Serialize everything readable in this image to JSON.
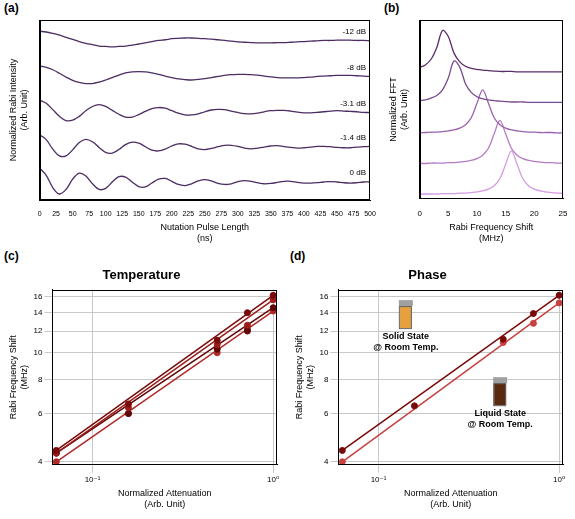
{
  "chart_data": [
    {
      "panel": "(a)",
      "type": "line",
      "xlabel": "Nutation Pulse Length (ns)",
      "ylabel": "Normalized Rabi Intensity (Arb. Unit)",
      "x": [
        0,
        10,
        20,
        30,
        40,
        50,
        60,
        70,
        80,
        90,
        100,
        110,
        120,
        130,
        140,
        150,
        160,
        170,
        180,
        190,
        200,
        210,
        220,
        230,
        240,
        250,
        260,
        270,
        280,
        290,
        300,
        310,
        320,
        330,
        340,
        350,
        360,
        370,
        380,
        390,
        400,
        410,
        420,
        430,
        440,
        450,
        460,
        470,
        480,
        490,
        500
      ],
      "xlim": [
        0,
        500
      ],
      "xticks": [
        0,
        25,
        50,
        75,
        100,
        125,
        150,
        175,
        200,
        225,
        250,
        275,
        300,
        325,
        350,
        375,
        400,
        425,
        450,
        475,
        500
      ],
      "ylim": [
        -0.5,
        4.6
      ],
      "tick_labels": "x",
      "grid": false,
      "series": [
        {
          "name": "-12 dB",
          "color": "#4b2d63",
          "values": [
            4.28,
            4.26,
            4.22,
            4.17,
            4.11,
            4.05,
            3.99,
            3.94,
            3.9,
            3.86,
            3.85,
            3.84,
            3.85,
            3.86,
            3.89,
            3.92,
            3.95,
            3.99,
            4.02,
            4.04,
            4.07,
            4.08,
            4.09,
            4.09,
            4.08,
            4.07,
            4.06,
            4.04,
            4.02,
            4.0,
            3.98,
            3.97,
            3.96,
            3.95,
            3.95,
            3.95,
            3.96,
            3.96,
            3.97,
            3.98,
            3.99,
            4.0,
            4.01,
            4.02,
            4.02,
            4.03,
            4.03,
            4.03,
            4.02,
            4.02,
            4.01
          ]
        },
        {
          "name": "-8 dB",
          "color": "#4b2d63",
          "values": [
            3.3,
            3.26,
            3.19,
            3.09,
            2.98,
            2.89,
            2.83,
            2.8,
            2.8,
            2.84,
            2.9,
            2.97,
            3.04,
            3.1,
            3.13,
            3.14,
            3.13,
            3.1,
            3.06,
            3.01,
            2.97,
            2.93,
            2.91,
            2.9,
            2.92,
            2.94,
            2.97,
            3.0,
            3.03,
            3.05,
            3.06,
            3.06,
            3.05,
            3.04,
            3.01,
            2.99,
            2.97,
            2.96,
            2.96,
            2.96,
            2.97,
            2.98,
            3.0,
            3.01,
            3.02,
            3.03,
            3.03,
            3.03,
            3.02,
            3.01,
            3.0
          ]
        },
        {
          "name": "-3.1 dB",
          "color": "#4b2d63",
          "values": [
            2.33,
            2.24,
            2.06,
            1.87,
            1.75,
            1.76,
            1.87,
            2.03,
            2.15,
            2.2,
            2.15,
            2.04,
            1.93,
            1.85,
            1.85,
            1.92,
            2.01,
            2.09,
            2.12,
            2.1,
            2.03,
            1.96,
            1.91,
            1.91,
            1.94,
            2.0,
            2.05,
            2.07,
            2.06,
            2.02,
            1.98,
            1.95,
            1.94,
            1.96,
            2.0,
            2.03,
            2.04,
            2.04,
            2.02,
            1.99,
            1.97,
            1.97,
            1.98,
            2.0,
            2.02,
            2.03,
            2.02,
            2.01,
            2.0,
            1.98,
            1.98
          ]
        },
        {
          "name": "-1.4 dB",
          "color": "#4b2d63",
          "values": [
            1.35,
            1.21,
            0.94,
            0.75,
            0.75,
            0.92,
            1.13,
            1.22,
            1.15,
            0.99,
            0.85,
            0.83,
            0.93,
            1.07,
            1.14,
            1.11,
            1.01,
            0.91,
            0.89,
            0.94,
            1.03,
            1.09,
            1.08,
            1.02,
            0.95,
            0.93,
            0.96,
            1.01,
            1.05,
            1.05,
            1.02,
            0.97,
            0.95,
            0.97,
            1.0,
            1.03,
            1.04,
            1.01,
            0.99,
            0.97,
            0.98,
            1.0,
            1.02,
            1.02,
            1.01,
            0.99,
            0.98,
            0.98,
            1.0,
            1.01,
            1.02
          ]
        },
        {
          "name": "0 dB",
          "color": "#4b2d63",
          "values": [
            0.4,
            0.2,
            -0.15,
            -0.33,
            -0.2,
            0.09,
            0.26,
            0.18,
            -0.04,
            -0.2,
            -0.17,
            0.01,
            0.16,
            0.15,
            0.01,
            -0.12,
            -0.13,
            -0.02,
            0.09,
            0.11,
            0.03,
            -0.06,
            -0.09,
            -0.04,
            0.04,
            0.08,
            0.04,
            -0.03,
            -0.06,
            -0.04,
            0.02,
            0.05,
            0.03,
            -0.01,
            -0.04,
            -0.03,
            0.0,
            0.03,
            0.03,
            0.0,
            -0.02,
            -0.02,
            -0.01,
            0.01,
            0.02,
            0.01,
            -0.01,
            -0.02,
            -0.01,
            0.01,
            0.01
          ]
        }
      ]
    },
    {
      "panel": "(b)",
      "type": "line",
      "xlabel": "Rabi Frequency Shift (MHz)",
      "ylabel": "Normalized FFT (Arb. Unit)",
      "x": [
        0,
        1,
        2,
        3,
        4,
        5,
        6,
        7,
        8,
        9,
        10,
        11,
        12,
        13,
        14,
        15,
        16,
        17,
        18,
        19,
        20,
        21,
        22,
        23,
        24,
        25
      ],
      "xlim": [
        0,
        25
      ],
      "xticks": [
        0,
        5,
        10,
        15,
        20,
        25
      ],
      "ylim": [
        -0.1,
        4.0
      ],
      "tick_labels": "x",
      "grid": false,
      "series": [
        {
          "color": "#5a2d6b",
          "values": [
            2.91,
            2.97,
            3.1,
            3.37,
            3.76,
            3.62,
            3.24,
            3.04,
            2.94,
            2.89,
            2.87,
            2.85,
            2.84,
            2.83,
            2.82,
            2.82,
            2.82,
            2.81,
            2.81,
            2.81,
            2.81,
            2.81,
            2.81,
            2.81,
            2.81,
            2.81
          ]
        },
        {
          "color": "#7a4a8e",
          "values": [
            2.15,
            2.17,
            2.21,
            2.27,
            2.4,
            2.67,
            3.06,
            2.92,
            2.54,
            2.34,
            2.24,
            2.19,
            2.17,
            2.15,
            2.14,
            2.13,
            2.12,
            2.12,
            2.12,
            2.11,
            2.11,
            2.11,
            2.11,
            2.11,
            2.11,
            2.11
          ]
        },
        {
          "color": "#9b62ad",
          "values": [
            1.42,
            1.42,
            1.43,
            1.43,
            1.44,
            1.46,
            1.48,
            1.52,
            1.6,
            1.76,
            2.09,
            2.4,
            2.09,
            1.76,
            1.6,
            1.52,
            1.48,
            1.46,
            1.44,
            1.43,
            1.43,
            1.42,
            1.42,
            1.42,
            1.41,
            1.41
          ]
        },
        {
          "color": "#b57cc4",
          "values": [
            0.71,
            0.71,
            0.72,
            0.72,
            0.72,
            0.73,
            0.73,
            0.74,
            0.76,
            0.78,
            0.82,
            0.9,
            1.06,
            1.39,
            1.7,
            1.39,
            1.06,
            0.9,
            0.82,
            0.78,
            0.76,
            0.74,
            0.73,
            0.73,
            0.72,
            0.72
          ]
        },
        {
          "color": "#d49be0",
          "values": [
            0.01,
            0.01,
            0.01,
            0.01,
            0.02,
            0.02,
            0.02,
            0.03,
            0.03,
            0.04,
            0.06,
            0.08,
            0.12,
            0.2,
            0.36,
            0.69,
            1.0,
            0.69,
            0.36,
            0.2,
            0.12,
            0.08,
            0.06,
            0.04,
            0.03,
            0.03
          ]
        }
      ]
    },
    {
      "panel": "(c)",
      "type": "scatter",
      "title": "Temperature",
      "xlabel": "Normalized Attenuation (Arb. Unit)",
      "ylabel": "Rabi Frequency Shift (MHz)",
      "log": true,
      "grid": true,
      "marker": "circle",
      "xlim": [
        0.06,
        1.05
      ],
      "xticks": [
        {
          "value": 0.1,
          "label": "10⁻¹"
        },
        {
          "value": 1,
          "label": "10⁰"
        }
      ],
      "ylim": [
        3.9,
        17
      ],
      "yticks": [
        4,
        6,
        8,
        10,
        12,
        14,
        16
      ],
      "x": [
        0.063,
        0.158,
        0.49,
        0.72,
        1.0
      ],
      "fit_x": [
        0.063,
        1.0
      ],
      "series": [
        {
          "color": "#7a0a0a",
          "values": [
            4.4,
            6.5,
            11.1,
            14.0,
            16.2
          ],
          "fit": [
            4.4,
            16.2
          ]
        },
        {
          "color": "#9c1c1c",
          "values": [
            4.3,
            6.3,
            10.7,
            12.6,
            15.6
          ],
          "fit": [
            4.3,
            15.6
          ]
        },
        {
          "color": "#5e0606",
          "values": [
            4.3,
            6.0,
            10.3,
            12.0,
            14.6
          ],
          "fit": [
            4.3,
            14.6
          ]
        },
        {
          "color": "#b02a2a",
          "values": [
            4.0,
            6.0,
            10.0,
            12.2,
            14.2
          ],
          "fit": [
            4.0,
            14.2
          ]
        }
      ]
    },
    {
      "panel": "(d)",
      "type": "scatter",
      "title": "Phase",
      "xlabel": "Normalized Attenuation (Arb. Unit)",
      "ylabel": "Rabi Frequency Shift (MHz)",
      "log": true,
      "grid": true,
      "marker": "circle",
      "xlim": [
        0.06,
        1.05
      ],
      "xticks": [
        {
          "value": 0.1,
          "label": "10⁻¹"
        },
        {
          "value": 1,
          "label": "10⁰"
        }
      ],
      "ylim": [
        3.9,
        17
      ],
      "yticks": [
        4,
        6,
        8,
        10,
        12,
        14,
        16
      ],
      "x": [
        0.063,
        0.158,
        0.49,
        0.72,
        1.0
      ],
      "fit_x": [
        0.063,
        1.0
      ],
      "annotations": [
        {
          "text": [
            "Solid State",
            "@ Room Temp."
          ]
        },
        {
          "text": [
            "Liquid State",
            "@ Room Temp."
          ]
        }
      ],
      "series": [
        {
          "color": "#7a0a0a",
          "values": [
            4.4,
            6.4,
            11.2,
            13.9,
            16.2
          ],
          "fit": [
            4.4,
            16.2
          ]
        },
        {
          "color": "#c84040",
          "values": [
            4.0,
            null,
            10.9,
            12.8,
            15.2
          ],
          "fit": [
            4.0,
            15.2
          ]
        }
      ]
    }
  ]
}
